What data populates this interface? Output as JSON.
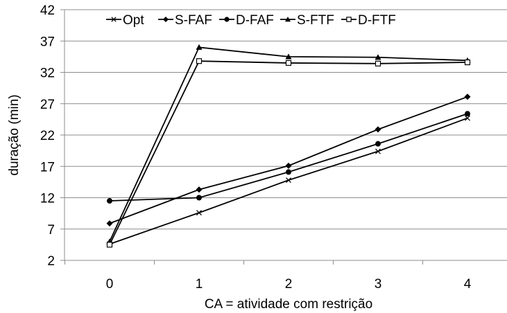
{
  "chart_data": {
    "type": "line",
    "title": "",
    "xlabel": "CA = atividade com restrição",
    "ylabel": "duração (min)",
    "categories": [
      "0",
      "1",
      "2",
      "3",
      "4"
    ],
    "x": [
      0,
      1,
      2,
      3,
      4
    ],
    "yticks": [
      2,
      7,
      12,
      17,
      22,
      27,
      32,
      37,
      42
    ],
    "ytick_labels": [
      "2",
      "7",
      "12",
      "17",
      "22",
      "27",
      "32",
      "37",
      "42"
    ],
    "ylim": [
      2,
      42
    ],
    "grid": "horizontal",
    "legend_position": "top",
    "series": [
      {
        "name": "Opt",
        "marker": "x",
        "values": [
          4.6,
          9.6,
          14.8,
          19.4,
          24.7
        ]
      },
      {
        "name": "S-FAF",
        "marker": "diamond",
        "values": [
          7.9,
          13.3,
          17.1,
          22.9,
          28.1
        ]
      },
      {
        "name": "D-FAF",
        "marker": "circle",
        "values": [
          11.5,
          12.0,
          16.1,
          20.6,
          25.4
        ]
      },
      {
        "name": "S-FTF",
        "marker": "triangle",
        "values": [
          5.0,
          36.0,
          34.5,
          34.4,
          33.9
        ]
      },
      {
        "name": "D-FTF",
        "marker": "square-open",
        "values": [
          4.5,
          33.8,
          33.5,
          33.4,
          33.6
        ]
      }
    ]
  }
}
